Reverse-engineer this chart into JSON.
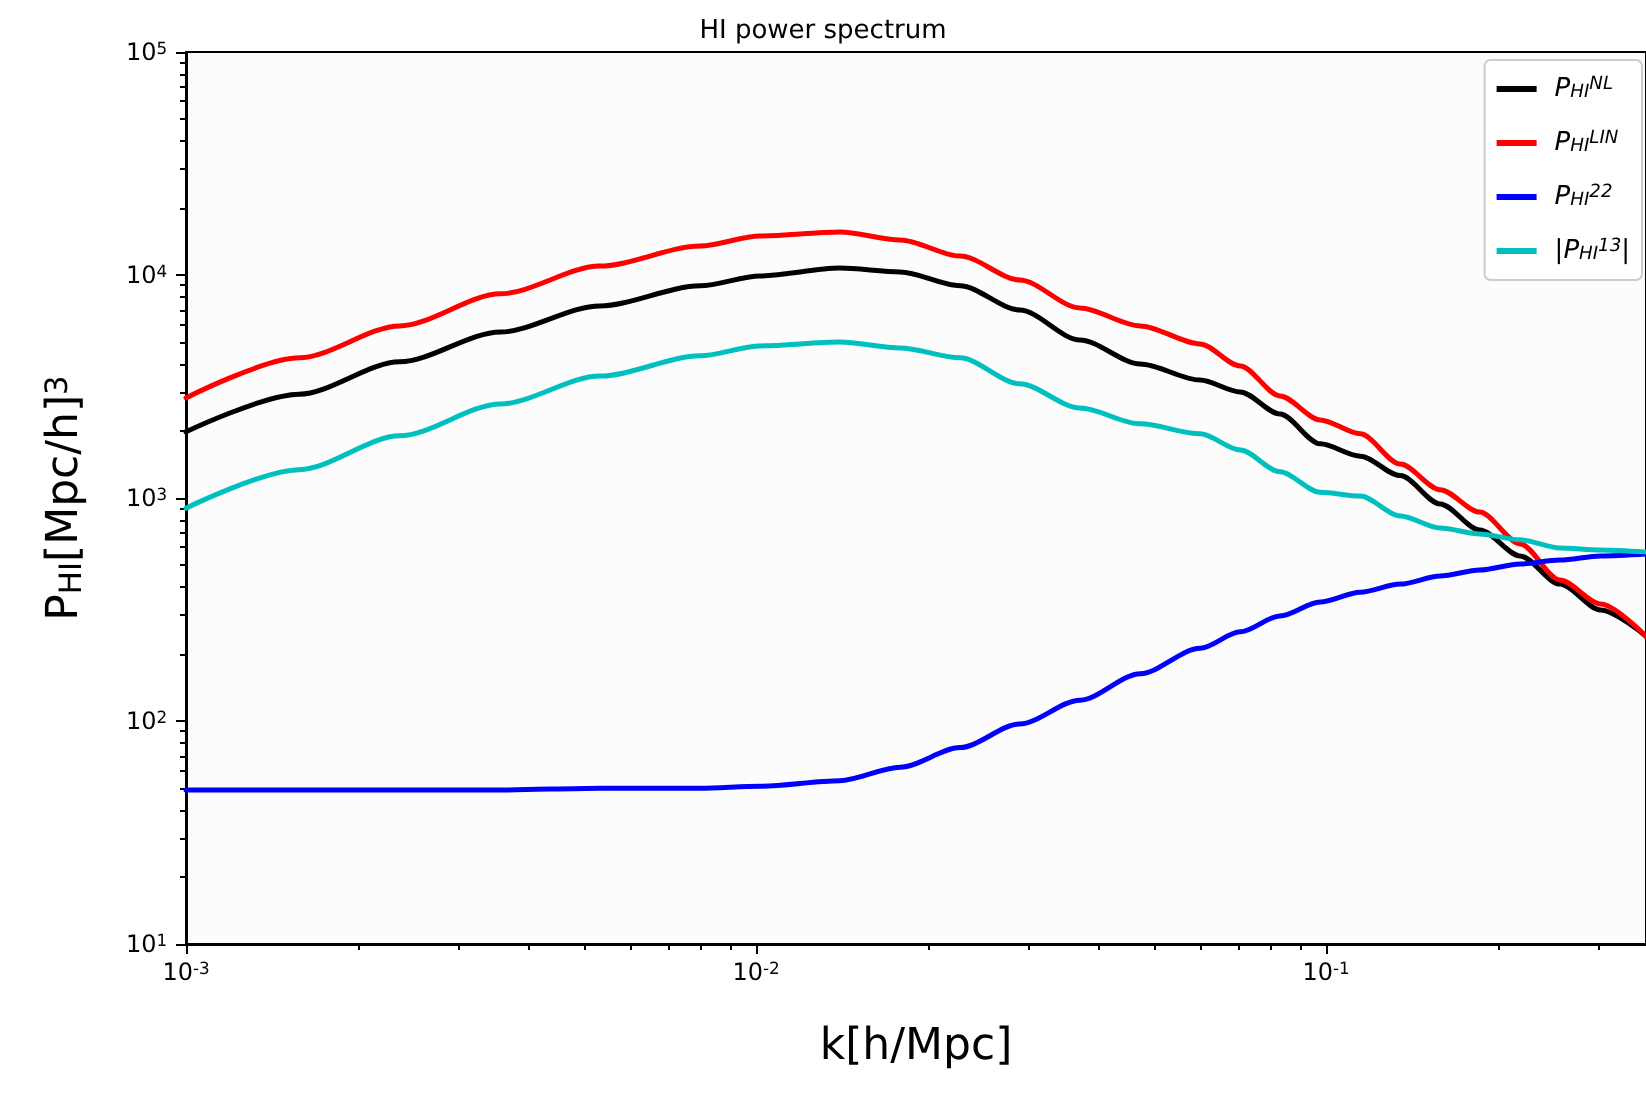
{
  "chart_data": {
    "type": "line",
    "title": "HI power spectrum",
    "xlabel": "k[h/Mpc]",
    "ylabel": "P$_{HI}$[Mpc/h]$^{3}$",
    "log": "xy",
    "grid": false,
    "legend": "top right",
    "line_style": "solid",
    "marker": "none",
    "xlim": [
      0.001,
      0.364
    ],
    "ylim": [
      10,
      100000
    ],
    "xticks": [
      {
        "value": 0.001,
        "label": "10$^{-3}$"
      },
      {
        "value": 0.01,
        "label": "10$^{-2}$"
      },
      {
        "value": 0.1,
        "label": "10$^{-1}$"
      }
    ],
    "yticks": [
      {
        "value": 10,
        "label": "10$^{1}$"
      },
      {
        "value": 100,
        "label": "10$^{2}$"
      },
      {
        "value": 1000,
        "label": "10$^{3}$"
      },
      {
        "value": 10000,
        "label": "10$^{4}$"
      },
      {
        "value": 100000,
        "label": "10$^{5}$"
      }
    ],
    "x": [
      0.001,
      0.00158,
      0.00237,
      0.00356,
      0.00532,
      0.00798,
      0.01016,
      0.01403,
      0.0179,
      0.0228,
      0.029,
      0.037,
      0.0472,
      0.0601,
      0.0707,
      0.083,
      0.0976,
      0.1148,
      0.1349,
      0.1585,
      0.186,
      0.219,
      0.257,
      0.303,
      0.364
    ],
    "series": [
      {
        "name": "P$_{HI}$$^{NL}$",
        "color": "#000000",
        "values": [
          1980,
          2920,
          4080,
          5550,
          7270,
          8940,
          9900,
          10740,
          10310,
          8940,
          6970,
          5110,
          3990,
          3380,
          2990,
          2380,
          1750,
          1540,
          1260,
          940,
          719,
          550,
          411,
          315,
          240
        ]
      },
      {
        "name": "P$_{HI}$$^{LIN}$",
        "color": "#ff0000",
        "values": [
          2810,
          4250,
          5910,
          8230,
          10960,
          13490,
          14960,
          15600,
          14360,
          12160,
          9500,
          7110,
          5910,
          4910,
          3910,
          2870,
          2240,
          1940,
          1420,
          1090,
          865,
          622,
          429,
          335,
          240
        ]
      },
      {
        "name": "P$_{HI}$$^{22}$",
        "color": "#0000ff",
        "values": [
          49,
          49,
          49,
          49,
          50,
          50,
          51,
          54,
          62,
          76,
          97,
          124,
          163,
          212,
          251,
          296,
          342,
          378,
          411,
          447,
          475,
          506,
          527,
          550,
          561
        ]
      },
      {
        "name": "|P$_{HI}$$^{13}$|",
        "color": "#00bfbf",
        "values": [
          900,
          1340,
          1900,
          2640,
          3520,
          4340,
          4810,
          5010,
          4710,
          4250,
          3250,
          2530,
          2150,
          1940,
          1640,
          1310,
          1060,
          1020,
          830,
          733,
          690,
          649,
          597,
          585,
          573
        ]
      }
    ]
  }
}
